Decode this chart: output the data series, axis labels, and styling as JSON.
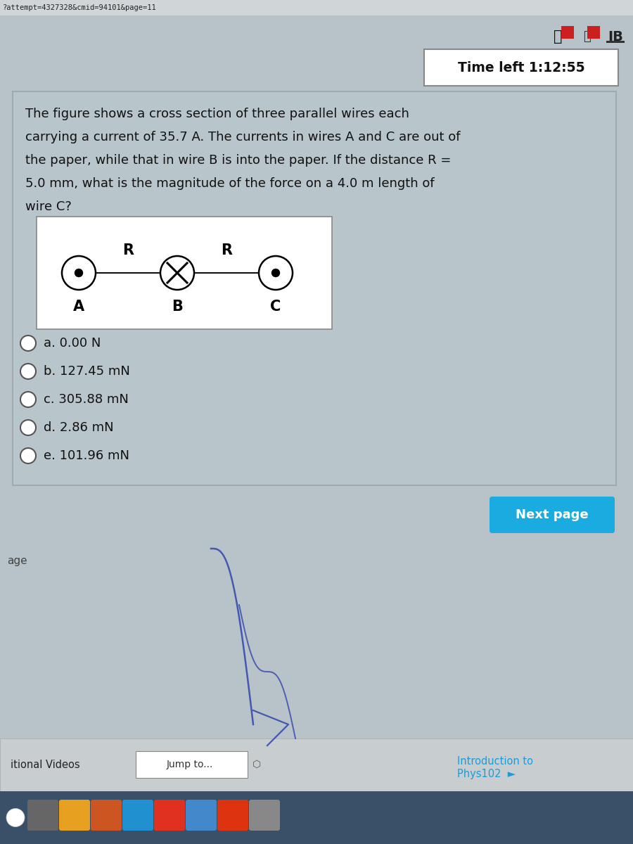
{
  "url_text": "?attempt=4327328&cmid=94101&page=11",
  "time_label": "Time left 1:12:55",
  "question_text_lines": [
    "The figure shows a cross section of three parallel wires each",
    "carrying a current of 35.7 A. The currents in wires A and C are out of",
    "the paper, while that in wire B is into the paper. If the distance R =",
    "5.0 mm, what is the magnitude of the force on a 4.0 m length of",
    "wire C?"
  ],
  "choices": [
    "a. 0.00 N",
    "b. 127.45 mN",
    "c. 305.88 mN",
    "d. 2.86 mN",
    "e. 101.96 mN"
  ],
  "next_page_btn": "Next page",
  "next_page_color": "#1aabe0",
  "jump_to_text": "Jump to...",
  "intro_line1": "Introduction to",
  "intro_line2": "Phys102",
  "age_text": "age",
  "itional_text": "itional Videos",
  "IB_text": "IB",
  "bg_color": "#b8c4ca",
  "url_bar_color": "#d0d5d8",
  "card_bg_color": "#b8c5cb",
  "diag_bg_color": "#ffffff",
  "nav_bar_color": "#c8cdd0",
  "taskbar_color": "#3a5068",
  "taskbar_dark": "#1a2030",
  "fig_width": 9.0,
  "fig_height": 12.0,
  "dpi": 100
}
